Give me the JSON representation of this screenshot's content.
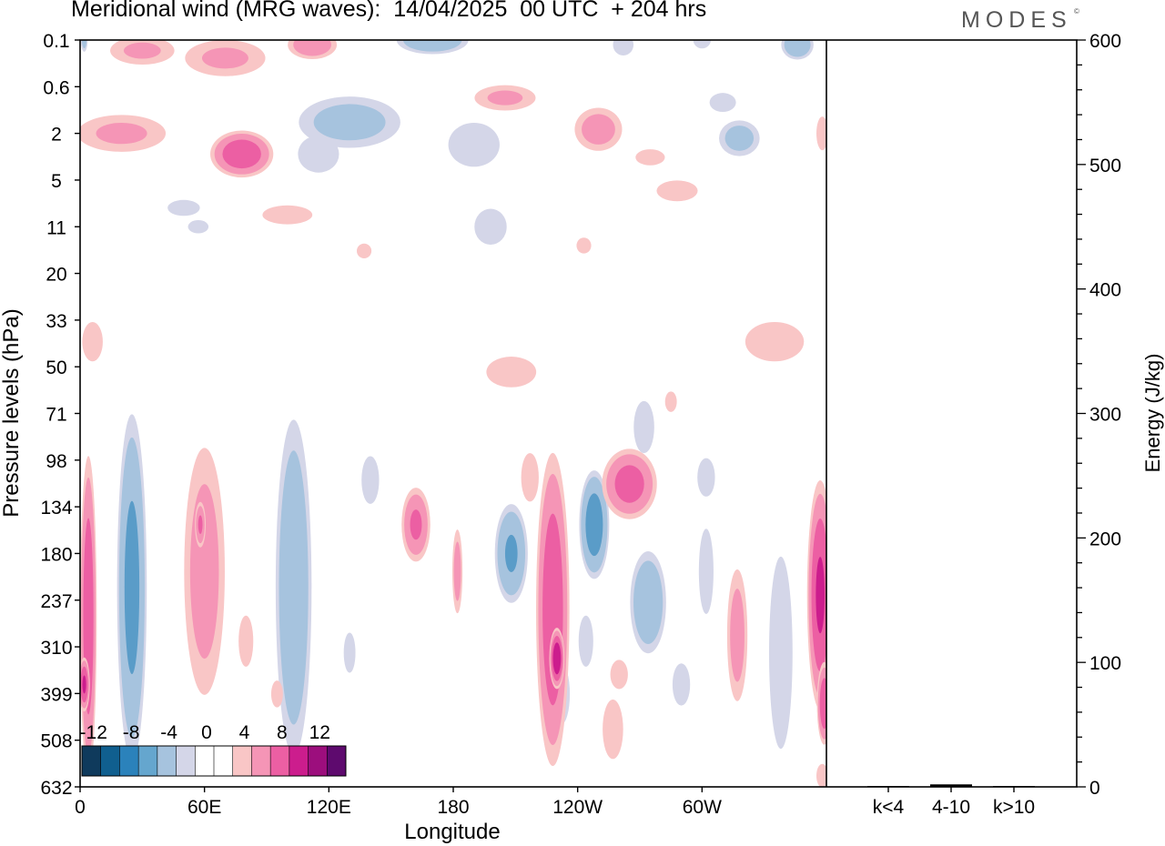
{
  "header": {
    "title": "Meridional wind (MRG waves):  14/04/2025  00 UTC  + 204 hrs",
    "logo": "MODES",
    "logo_mark": "©"
  },
  "chart_data": [
    {
      "type": "heatmap",
      "title": "Meridional wind (MRG waves):  14/04/2025  00 UTC  + 204 hrs",
      "xlabel": "Longitude",
      "ylabel": "Pressure levels (hPa)",
      "x_ticks": [
        "0",
        "60E",
        "120E",
        "180",
        "120W",
        "60W"
      ],
      "y_ticks": [
        "0.1",
        "0.6",
        "2",
        "5",
        "11",
        "20",
        "33",
        "50",
        "71",
        "98",
        "134",
        "180",
        "237",
        "310",
        "399",
        "508",
        "632"
      ],
      "colorbar": {
        "labels": [
          "-12",
          "-8",
          "-4",
          "0",
          "4",
          "8",
          "12"
        ],
        "colors": [
          "#0f3a5c",
          "#105f8f",
          "#2b82bb",
          "#65a6ce",
          "#a6c3de",
          "#d4d6e8",
          "#ffffff",
          "#ffffff",
          "#f9c6c6",
          "#f595b6",
          "#ec5fa3",
          "#cc1d8d",
          "#9c0e7d",
          "#5e0a6e"
        ]
      },
      "palette": {
        "neg_light": "#d4d6e8",
        "neg_mid": "#a6c3de",
        "neg_dark": "#5a9cc8",
        "pos_light": "#f9c6c6",
        "pos_mid": "#f595b6",
        "pos_dark": "#ec5fa3",
        "pos_vdark": "#cc1d8d"
      },
      "features": [
        {
          "sign": "neg",
          "lon": 2,
          "lev": 0.1,
          "w": 4,
          "h": 0.4,
          "max": -5
        },
        {
          "sign": "pos",
          "lon": 30,
          "lev": 0.15,
          "w": 40,
          "h": 0.5,
          "max": 4
        },
        {
          "sign": "pos",
          "lon": 70,
          "lev": 0.2,
          "w": 50,
          "h": 0.8,
          "max": 4
        },
        {
          "sign": "pos",
          "lon": 112,
          "lev": 0.12,
          "w": 28,
          "h": 0.5,
          "max": 6
        },
        {
          "sign": "neg",
          "lon": 170,
          "lev": 0.1,
          "w": 40,
          "h": 0.5,
          "max": -7
        },
        {
          "sign": "neg",
          "lon": 262,
          "lev": 0.12,
          "w": 14,
          "h": 0.4,
          "max": -3
        },
        {
          "sign": "neg",
          "lon": 300,
          "lev": 0.1,
          "w": 12,
          "h": 0.3,
          "max": -3
        },
        {
          "sign": "neg",
          "lon": 346,
          "lev": 0.12,
          "w": 18,
          "h": 0.5,
          "max": -7
        },
        {
          "sign": "pos",
          "lon": 205,
          "lev": 0.8,
          "w": 38,
          "h": 0.7,
          "max": 4
        },
        {
          "sign": "neg",
          "lon": 310,
          "lev": 0.9,
          "w": 18,
          "h": 0.6,
          "max": -3
        },
        {
          "sign": "pos",
          "lon": 20,
          "lev": 2,
          "w": 55,
          "h": 2,
          "max": 4
        },
        {
          "sign": "pos",
          "lon": 78,
          "lev": 3,
          "w": 34,
          "h": 3,
          "max": 9
        },
        {
          "sign": "neg",
          "lon": 130,
          "lev": 1.5,
          "w": 60,
          "h": 2,
          "max": -5
        },
        {
          "sign": "neg",
          "lon": 115,
          "lev": 3,
          "w": 28,
          "h": 3,
          "max": -3
        },
        {
          "sign": "neg",
          "lon": 190,
          "lev": 2.5,
          "w": 35,
          "h": 3,
          "max": -3
        },
        {
          "sign": "pos",
          "lon": 250,
          "lev": 1.8,
          "w": 28,
          "h": 2,
          "max": 5
        },
        {
          "sign": "pos",
          "lon": 275,
          "lev": 3.2,
          "w": 20,
          "h": 1.4,
          "max": 3
        },
        {
          "sign": "neg",
          "lon": 318,
          "lev": 2.2,
          "w": 24,
          "h": 2,
          "max": -5
        },
        {
          "sign": "pos",
          "lon": 358,
          "lev": 2,
          "w": 8,
          "h": 2,
          "max": 3
        },
        {
          "sign": "neg",
          "lon": 50,
          "lev": 8,
          "w": 22,
          "h": 3,
          "max": -3
        },
        {
          "sign": "pos",
          "lon": 100,
          "lev": 9,
          "w": 34,
          "h": 4,
          "max": 3
        },
        {
          "sign": "pos",
          "lon": 288,
          "lev": 6,
          "w": 28,
          "h": 3,
          "max": 3
        },
        {
          "sign": "neg",
          "lon": 198,
          "lev": 11,
          "w": 22,
          "h": 8,
          "max": -3
        },
        {
          "sign": "pos",
          "lon": 243,
          "lev": 14,
          "w": 10,
          "h": 4,
          "max": 3
        },
        {
          "sign": "pos",
          "lon": 137,
          "lev": 15,
          "w": 10,
          "h": 4,
          "max": 3
        },
        {
          "sign": "neg",
          "lon": 57,
          "lev": 11,
          "w": 14,
          "h": 3,
          "max": -3
        },
        {
          "sign": "pos",
          "lon": 335,
          "lev": 40,
          "w": 40,
          "h": 20,
          "max": 3
        },
        {
          "sign": "pos",
          "lon": 6,
          "lev": 40,
          "w": 14,
          "h": 20,
          "max": 3
        },
        {
          "sign": "pos",
          "lon": 208,
          "lev": 52,
          "w": 34,
          "h": 18,
          "max": 3
        },
        {
          "sign": "neg",
          "lon": 272,
          "lev": 78,
          "w": 14,
          "h": 40,
          "max": -3
        },
        {
          "sign": "pos",
          "lon": 285,
          "lev": 65,
          "w": 8,
          "h": 14,
          "max": 3
        },
        {
          "sign": "neg",
          "lon": 140,
          "lev": 112,
          "w": 12,
          "h": 50,
          "max": -3
        },
        {
          "sign": "neg",
          "lon": 302,
          "lev": 110,
          "w": 12,
          "h": 40,
          "max": -3
        },
        {
          "sign": "pos",
          "lon": 217,
          "lev": 110,
          "w": 12,
          "h": 50,
          "max": 3
        },
        {
          "sign": "pos",
          "lon": 4,
          "lev": 260,
          "w": 9,
          "h": 420,
          "max": 9
        },
        {
          "sign": "pos",
          "lon": 2,
          "lev": 380,
          "w": 6,
          "h": 120,
          "max": 10
        },
        {
          "sign": "neg",
          "lon": 25,
          "lev": 220,
          "w": 16,
          "h": 380,
          "max": -9
        },
        {
          "sign": "pos",
          "lon": 60,
          "lev": 200,
          "w": 24,
          "h": 300,
          "max": 5
        },
        {
          "sign": "pos",
          "lon": 58,
          "lev": 150,
          "w": 6,
          "h": 50,
          "max": 7
        },
        {
          "sign": "neg",
          "lon": 103,
          "lev": 220,
          "w": 20,
          "h": 380,
          "max": -7
        },
        {
          "sign": "pos",
          "lon": 162,
          "lev": 150,
          "w": 16,
          "h": 80,
          "max": 7
        },
        {
          "sign": "pos",
          "lon": 182,
          "lev": 200,
          "w": 6,
          "h": 120,
          "max": 5
        },
        {
          "sign": "neg",
          "lon": 208,
          "lev": 180,
          "w": 18,
          "h": 120,
          "max": -8
        },
        {
          "sign": "neg",
          "lon": 232,
          "lev": 400,
          "w": 12,
          "h": 180,
          "max": -3
        },
        {
          "sign": "pos",
          "lon": 228,
          "lev": 250,
          "w": 18,
          "h": 400,
          "max": 9
        },
        {
          "sign": "pos",
          "lon": 230,
          "lev": 330,
          "w": 8,
          "h": 120,
          "max": 12
        },
        {
          "sign": "neg",
          "lon": 248,
          "lev": 150,
          "w": 16,
          "h": 110,
          "max": -10
        },
        {
          "sign": "pos",
          "lon": 265,
          "lev": 115,
          "w": 30,
          "h": 60,
          "max": 8
        },
        {
          "sign": "neg",
          "lon": 274,
          "lev": 240,
          "w": 20,
          "h": 160,
          "max": -7
        },
        {
          "sign": "pos",
          "lon": 257,
          "lev": 480,
          "w": 14,
          "h": 200,
          "max": 3
        },
        {
          "sign": "pos",
          "lon": 260,
          "lev": 360,
          "w": 12,
          "h": 80,
          "max": 3
        },
        {
          "sign": "neg",
          "lon": 244,
          "lev": 300,
          "w": 10,
          "h": 120,
          "max": -3
        },
        {
          "sign": "neg",
          "lon": 302,
          "lev": 200,
          "w": 10,
          "h": 140,
          "max": -3
        },
        {
          "sign": "pos",
          "lon": 317,
          "lev": 290,
          "w": 12,
          "h": 250,
          "max": 5
        },
        {
          "sign": "neg",
          "lon": 338,
          "lev": 320,
          "w": 16,
          "h": 420,
          "max": -3
        },
        {
          "sign": "pos",
          "lon": 357,
          "lev": 230,
          "w": 14,
          "h": 300,
          "max": 10
        },
        {
          "sign": "pos",
          "lon": 359,
          "lev": 420,
          "w": 8,
          "h": 200,
          "max": 9
        },
        {
          "sign": "pos",
          "lon": 358,
          "lev": 600,
          "w": 8,
          "h": 120,
          "max": 3
        },
        {
          "sign": "neg",
          "lon": 290,
          "lev": 380,
          "w": 12,
          "h": 120,
          "max": -3
        },
        {
          "sign": "pos",
          "lon": 80,
          "lev": 300,
          "w": 10,
          "h": 120,
          "max": 3
        },
        {
          "sign": "neg",
          "lon": 130,
          "lev": 320,
          "w": 8,
          "h": 100,
          "max": -3
        },
        {
          "sign": "pos",
          "lon": 95,
          "lev": 400,
          "w": 8,
          "h": 80,
          "max": 3
        }
      ]
    },
    {
      "type": "bar",
      "categories": [
        "k<4",
        "4-10",
        "k>10"
      ],
      "values": [
        0,
        2,
        0
      ],
      "ylabel": "Energy (J/kg)",
      "ylim": [
        0,
        600
      ],
      "y_ticks": [
        "0",
        "100",
        "200",
        "300",
        "400",
        "500",
        "600"
      ]
    }
  ]
}
